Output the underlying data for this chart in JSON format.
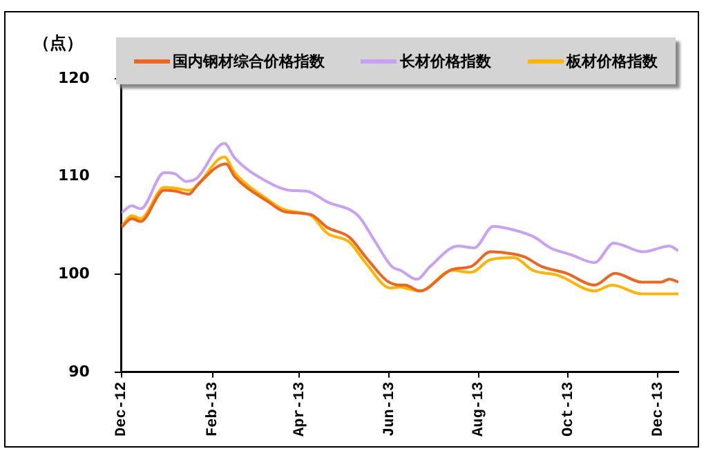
{
  "chart_data": {
    "type": "line",
    "ylabel": "（点）",
    "legend": "top",
    "grid": false,
    "marker": "none",
    "line_style": "solid",
    "ylim": [
      90,
      120
    ],
    "yticks": [
      90,
      100,
      110,
      120
    ],
    "xlim": [
      "2012-12-01",
      "2013-12-15"
    ],
    "xticks": [
      {
        "value": "2012-12-01",
        "label": "Dec-12"
      },
      {
        "value": "2013-02-01",
        "label": "Feb-13"
      },
      {
        "value": "2013-04-01",
        "label": "Apr-13"
      },
      {
        "value": "2013-06-01",
        "label": "Jun-13"
      },
      {
        "value": "2013-08-01",
        "label": "Aug-13"
      },
      {
        "value": "2013-10-01",
        "label": "Oct-13"
      },
      {
        "value": "2013-12-01",
        "label": "Dec-13"
      }
    ],
    "series": [
      {
        "name": "国内钢材综合价格指数",
        "color": "#f0641e",
        "x": [
          "2012-12-01",
          "2012-12-08",
          "2012-12-14",
          "2012-12-30",
          "2013-01-07",
          "2013-01-16",
          "2013-01-22",
          "2013-02-10",
          "2013-02-16",
          "2013-03-11",
          "2013-03-22",
          "2013-04-09",
          "2013-04-20",
          "2013-05-05",
          "2013-05-16",
          "2013-05-31",
          "2013-06-09",
          "2013-06-12",
          "2013-06-22",
          "2013-07-14",
          "2013-07-27",
          "2013-08-09",
          "2013-08-24",
          "2013-09-01",
          "2013-09-13",
          "2013-09-30",
          "2013-10-19",
          "2013-11-02",
          "2013-11-20",
          "2013-12-03",
          "2013-12-09",
          "2013-12-15"
        ],
        "values": [
          104.8,
          105.7,
          105.4,
          108.6,
          108.5,
          108.2,
          109.2,
          111.3,
          110.0,
          107.4,
          106.4,
          106.1,
          104.8,
          103.8,
          101.8,
          99.3,
          98.9,
          98.9,
          98.3,
          100.5,
          100.8,
          102.3,
          102.1,
          101.8,
          100.8,
          100.1,
          98.9,
          100.1,
          99.2,
          99.2,
          99.5,
          99.2
        ]
      },
      {
        "name": "长材价格指数",
        "color": "#c8a0f5",
        "x": [
          "2012-12-01",
          "2012-12-08",
          "2012-12-14",
          "2012-12-30",
          "2013-01-06",
          "2013-01-14",
          "2013-01-21",
          "2013-02-09",
          "2013-02-16",
          "2013-03-11",
          "2013-03-25",
          "2013-04-06",
          "2013-04-20",
          "2013-05-11",
          "2013-05-22",
          "2013-06-03",
          "2013-06-09",
          "2013-06-20",
          "2013-06-29",
          "2013-07-18",
          "2013-07-29",
          "2013-08-11",
          "2013-08-26",
          "2013-09-08",
          "2013-09-19",
          "2013-10-03",
          "2013-10-19",
          "2013-11-01",
          "2013-11-21",
          "2013-12-09",
          "2013-12-15"
        ],
        "values": [
          106.3,
          107.0,
          106.7,
          110.4,
          110.3,
          109.5,
          109.8,
          113.4,
          111.9,
          109.4,
          108.6,
          108.5,
          107.4,
          106.0,
          103.5,
          100.8,
          100.4,
          99.5,
          100.8,
          102.9,
          102.7,
          104.9,
          104.5,
          103.8,
          102.7,
          102.0,
          101.2,
          103.2,
          102.3,
          102.9,
          102.4
        ]
      },
      {
        "name": "板材价格指数",
        "color": "#ffb400",
        "x": [
          "2012-12-01",
          "2012-12-08",
          "2012-12-14",
          "2012-12-30",
          "2013-01-07",
          "2013-01-16",
          "2013-02-09",
          "2013-02-16",
          "2013-03-11",
          "2013-03-22",
          "2013-04-09",
          "2013-04-20",
          "2013-05-05",
          "2013-05-16",
          "2013-06-02",
          "2013-06-09",
          "2013-06-12",
          "2013-06-22",
          "2013-07-14",
          "2013-07-27",
          "2013-08-09",
          "2013-08-25",
          "2013-09-07",
          "2013-09-24",
          "2013-10-19",
          "2013-10-31",
          "2013-11-20",
          "2013-12-15"
        ],
        "values": [
          104.9,
          106.0,
          105.7,
          108.9,
          108.8,
          108.6,
          112.0,
          110.4,
          107.6,
          106.6,
          106.0,
          104.2,
          103.3,
          101.2,
          98.6,
          98.7,
          98.6,
          98.3,
          100.4,
          100.2,
          101.5,
          101.7,
          100.4,
          99.9,
          98.3,
          98.9,
          98.0,
          98.0
        ]
      }
    ]
  }
}
